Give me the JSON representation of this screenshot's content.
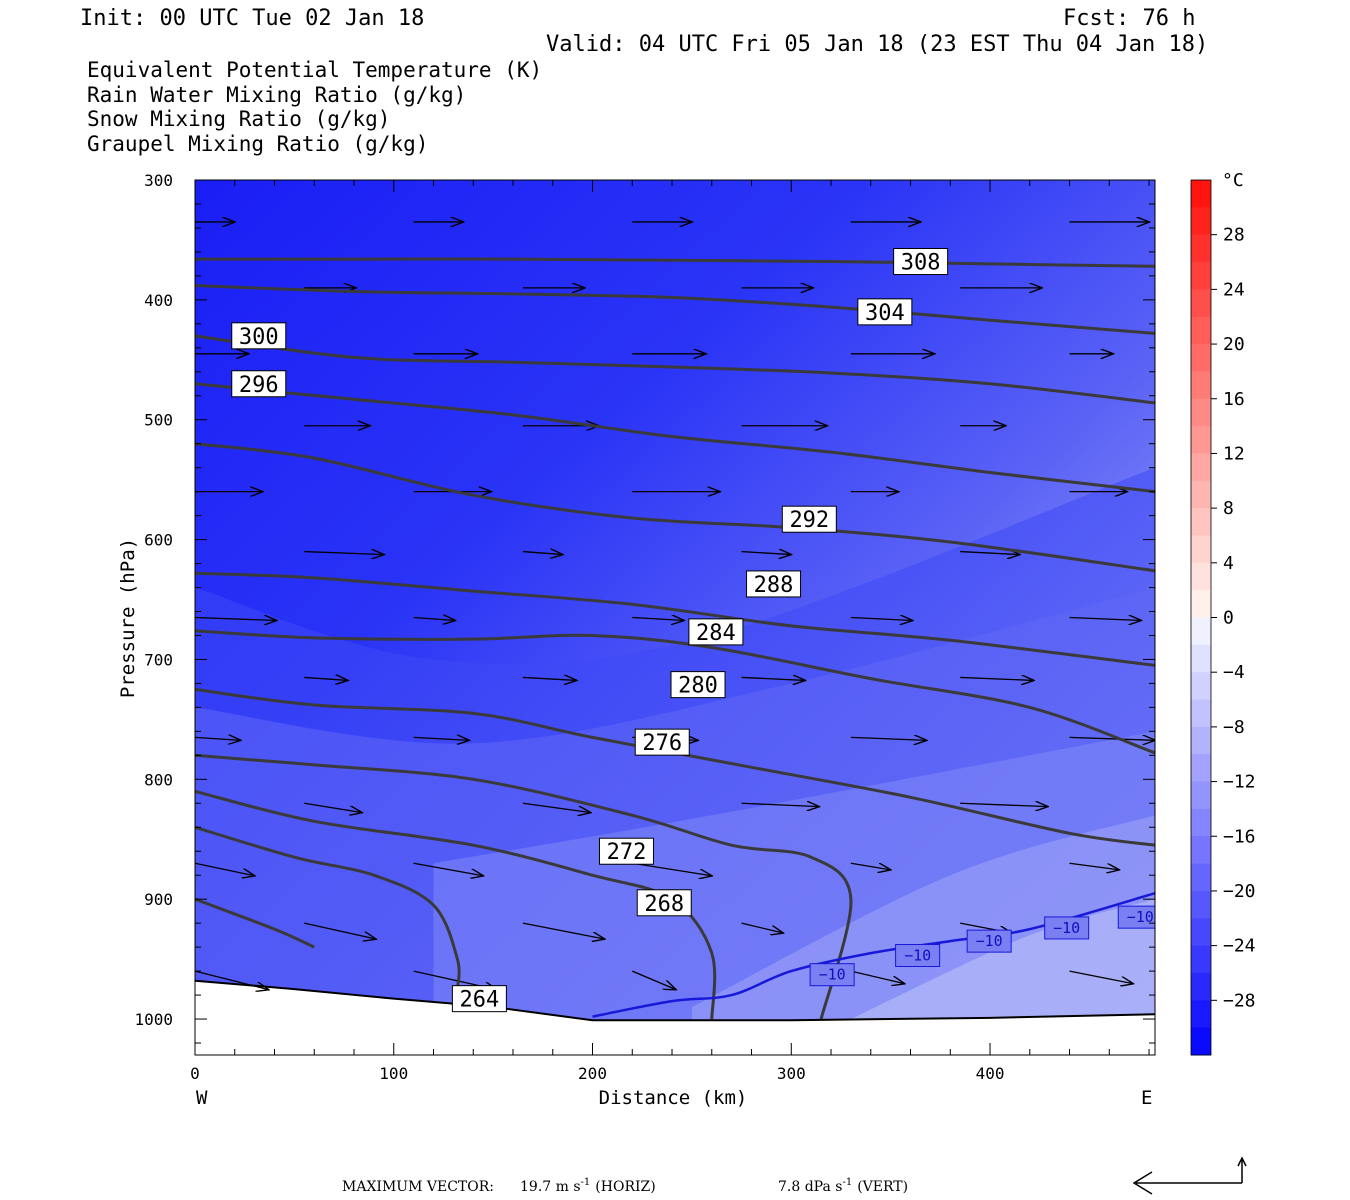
{
  "header": {
    "init": "Init: 00 UTC Tue 02 Jan 18",
    "fcst": "Fcst:   76 h",
    "valid": "Valid: 04 UTC Fri 05 Jan 18 (23 EST Thu 04 Jan 18)"
  },
  "fields": [
    {
      "label": "Equivalent Potential Temperature (K)",
      "color": "#555555"
    },
    {
      "label": "Rain Water Mixing Ratio (g/kg)",
      "color": "#008000"
    },
    {
      "label": "Snow Mixing Ratio (g/kg)",
      "color": "#f09050"
    },
    {
      "label": "Graupel Mixing Ratio (g/kg)",
      "color": "#f070f0"
    }
  ],
  "chart_data": {
    "type": "cross-section contour",
    "xlabel": "Distance (km)",
    "ylabel": "Pressure (hPa)",
    "xlim": [
      0,
      483
    ],
    "ylim": [
      1030,
      300
    ],
    "x_ticks": [
      0,
      100,
      200,
      300,
      400
    ],
    "y_ticks": [
      300,
      400,
      500,
      600,
      700,
      800,
      900,
      1000
    ],
    "x_ends": {
      "left": "W",
      "right": "E"
    },
    "colorbar": {
      "unit": "°C",
      "labels": [
        "28",
        "24",
        "20",
        "16",
        "12",
        "8",
        "4",
        "0",
        "−4",
        "−8",
        "−12",
        "−16",
        "−20",
        "−24",
        "−28"
      ],
      "label_values": [
        28,
        24,
        20,
        16,
        12,
        8,
        4,
        0,
        -4,
        -8,
        -12,
        -16,
        -20,
        -24,
        -28
      ],
      "range": [
        -32,
        32
      ],
      "step": 2
    },
    "theta_e_contours": [
      {
        "label": "308",
        "lx": 352,
        "lp": 368,
        "points": [
          [
            0,
            366
          ],
          [
            80,
            366
          ],
          [
            160,
            366
          ],
          [
            240,
            367
          ],
          [
            320,
            368
          ],
          [
            400,
            370
          ],
          [
            483,
            372
          ]
        ]
      },
      {
        "label": "304",
        "lx": 334,
        "lp": 410,
        "points": [
          [
            0,
            388
          ],
          [
            80,
            393
          ],
          [
            160,
            395
          ],
          [
            240,
            398
          ],
          [
            320,
            406
          ],
          [
            400,
            417
          ],
          [
            483,
            428
          ]
        ]
      },
      {
        "label": "300",
        "lx": 19,
        "lp": 430,
        "points": [
          [
            0,
            430
          ],
          [
            80,
            448
          ],
          [
            160,
            452
          ],
          [
            240,
            456
          ],
          [
            320,
            461
          ],
          [
            400,
            470
          ],
          [
            483,
            486
          ]
        ]
      },
      {
        "label": "296",
        "lx": 19,
        "lp": 470,
        "points": [
          [
            0,
            470
          ],
          [
            80,
            483
          ],
          [
            160,
            496
          ],
          [
            240,
            514
          ],
          [
            320,
            527
          ],
          [
            400,
            544
          ],
          [
            483,
            560
          ]
        ]
      },
      {
        "label": "292",
        "lx": 296,
        "lp": 583,
        "points": [
          [
            0,
            520
          ],
          [
            60,
            532
          ],
          [
            140,
            563
          ],
          [
            220,
            582
          ],
          [
            300,
            590
          ],
          [
            380,
            602
          ],
          [
            483,
            626
          ]
        ]
      },
      {
        "label": "288",
        "lx": 278,
        "lp": 637,
        "points": [
          [
            0,
            628
          ],
          [
            60,
            632
          ],
          [
            140,
            643
          ],
          [
            220,
            654
          ],
          [
            300,
            672
          ],
          [
            380,
            684
          ],
          [
            483,
            705
          ]
        ]
      },
      {
        "label": "284",
        "lx": 249,
        "lp": 677,
        "points": [
          [
            0,
            676
          ],
          [
            60,
            682
          ],
          [
            140,
            683
          ],
          [
            200,
            680
          ],
          [
            260,
            690
          ],
          [
            340,
            716
          ],
          [
            420,
            740
          ],
          [
            483,
            778
          ]
        ]
      },
      {
        "label": "280",
        "lx": 240,
        "lp": 721,
        "points": [
          [
            0,
            725
          ],
          [
            60,
            738
          ],
          [
            140,
            745
          ],
          [
            200,
            765
          ],
          [
            280,
            790
          ],
          [
            360,
            815
          ],
          [
            440,
            845
          ],
          [
            483,
            855
          ]
        ]
      },
      {
        "label": "276",
        "lx": 222,
        "lp": 769,
        "points": [
          [
            0,
            780
          ],
          [
            60,
            788
          ],
          [
            140,
            800
          ],
          [
            220,
            830
          ],
          [
            270,
            855
          ],
          [
            310,
            865
          ],
          [
            330,
            900
          ],
          [
            315,
            1000
          ]
        ]
      },
      {
        "label": "272",
        "lx": 204,
        "lp": 860,
        "points": [
          [
            0,
            810
          ],
          [
            60,
            835
          ],
          [
            140,
            855
          ],
          [
            200,
            880
          ],
          [
            240,
            900
          ],
          [
            260,
            945
          ],
          [
            260,
            1000
          ]
        ]
      },
      {
        "label": "268",
        "lx": 223,
        "lp": 903,
        "points": [
          [
            0,
            840
          ],
          [
            50,
            865
          ],
          [
            90,
            880
          ],
          [
            120,
            905
          ],
          [
            132,
            950
          ],
          [
            132,
            975
          ]
        ]
      },
      {
        "label": "264",
        "lx": 130,
        "lp": 983,
        "points": [
          [
            0,
            900
          ],
          [
            40,
            925
          ],
          [
            60,
            940
          ]
        ]
      }
    ],
    "temperature_contour": {
      "label": "−10",
      "label_positions": [
        [
          310,
          963
        ],
        [
          353,
          947
        ],
        [
          389,
          935
        ],
        [
          428,
          924
        ],
        [
          465,
          915
        ]
      ],
      "points": [
        [
          200,
          998
        ],
        [
          240,
          985
        ],
        [
          270,
          980
        ],
        [
          300,
          960
        ],
        [
          340,
          945
        ],
        [
          380,
          935
        ],
        [
          420,
          925
        ],
        [
          483,
          895
        ]
      ]
    },
    "max_vector": {
      "caption": "MAXIMUM VECTOR:",
      "horiz_value": "19.7 m s",
      "horiz_exp": "-1",
      "horiz_tag": "(HORIZ)",
      "vert_value": "7.8 dPa s",
      "vert_exp": "-1",
      "vert_tag": "(VERT)"
    }
  }
}
